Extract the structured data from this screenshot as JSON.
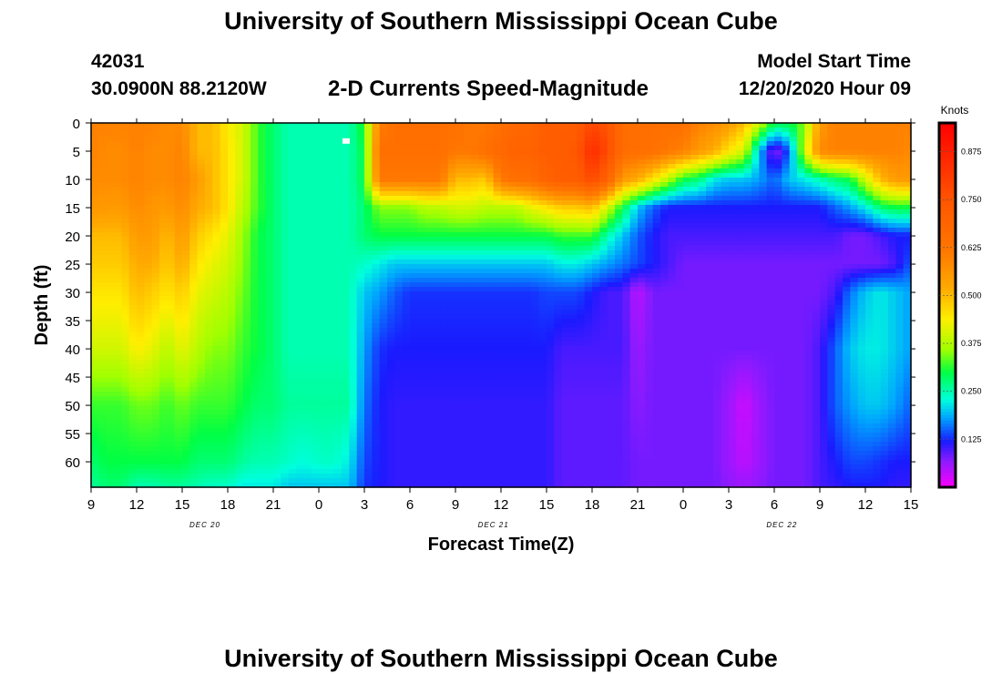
{
  "header": {
    "title": "University of Southern Mississippi Ocean Cube",
    "station": "42031",
    "coords": "30.0900N 88.2120W",
    "subtitle": "2-D Currents Speed-Magnitude",
    "model_start_label": "Model Start Time",
    "model_start_value": "12/20/2020 Hour 09"
  },
  "footer": {
    "title": "University of Southern Mississippi Ocean Cube"
  },
  "chart_data": {
    "type": "heatmap",
    "title": "2-D Currents Speed-Magnitude",
    "xlabel": "Forecast Time(Z)",
    "ylabel": "Depth (ft)",
    "x_tick_labels": [
      "9",
      "12",
      "15",
      "18",
      "21",
      "0",
      "3",
      "6",
      "9",
      "12",
      "15",
      "18",
      "21",
      "0",
      "3",
      "6",
      "9",
      "12",
      "15"
    ],
    "x_tick_hours": [
      0,
      3,
      6,
      9,
      12,
      15,
      18,
      21,
      24,
      27,
      30,
      33,
      36,
      39,
      42,
      45,
      48,
      51,
      54
    ],
    "date_labels": [
      {
        "text": "DEC 20",
        "hour": 7.5
      },
      {
        "text": "DEC 21",
        "hour": 26.5
      },
      {
        "text": "DEC 22",
        "hour": 45.5
      }
    ],
    "y_ticks": [
      0,
      5,
      10,
      15,
      20,
      25,
      30,
      35,
      40,
      45,
      50,
      55,
      60
    ],
    "ylim": [
      0,
      64.5
    ],
    "xlim": [
      0,
      54
    ],
    "colorbar": {
      "label": "Knots",
      "range": [
        0,
        0.95
      ],
      "tick_values": [
        0.125,
        0.25,
        0.375,
        0.5,
        0.625,
        0.75,
        0.875
      ],
      "tick_labels": [
        "0.125",
        "0.250",
        "0.375",
        "0.500",
        "0.625",
        "0.750",
        "0.875"
      ],
      "stops": [
        {
          "v": 0.0,
          "color": "#ff00ff"
        },
        {
          "v": 0.07,
          "color": "#8c1aff"
        },
        {
          "v": 0.12,
          "color": "#1a1aff"
        },
        {
          "v": 0.18,
          "color": "#00a0ff"
        },
        {
          "v": 0.23,
          "color": "#00ffdd"
        },
        {
          "v": 0.3,
          "color": "#00ff44"
        },
        {
          "v": 0.36,
          "color": "#a0ff00"
        },
        {
          "v": 0.44,
          "color": "#ffee00"
        },
        {
          "v": 0.52,
          "color": "#ffaa00"
        },
        {
          "v": 0.62,
          "color": "#ff7700"
        },
        {
          "v": 0.75,
          "color": "#ff5500"
        },
        {
          "v": 0.95,
          "color": "#ff0000"
        }
      ]
    },
    "depths": [
      0,
      5,
      10,
      15,
      20,
      25,
      30,
      40,
      50,
      60,
      64.5
    ],
    "hours": [
      0,
      1,
      2,
      3,
      4,
      5,
      6,
      7,
      8,
      9,
      10,
      11,
      12,
      13,
      14,
      15,
      16,
      17,
      18,
      19,
      20,
      21,
      22,
      23,
      24,
      25,
      26,
      27,
      28,
      29,
      30,
      31,
      32,
      33,
      34,
      35,
      36,
      37,
      38,
      39,
      40,
      41,
      42,
      43,
      44,
      45,
      46,
      47,
      48,
      49,
      50,
      51,
      52,
      53,
      54
    ],
    "speed_knots": [
      [
        0.6,
        0.6,
        0.6,
        0.6,
        0.6,
        0.58,
        0.58,
        0.5,
        0.5,
        0.44,
        0.4,
        0.32,
        0.28,
        0.25,
        0.25,
        0.25,
        0.25,
        0.25,
        0.32,
        0.6,
        0.65,
        0.65,
        0.65,
        0.65,
        0.65,
        0.62,
        0.62,
        0.65,
        0.68,
        0.68,
        0.72,
        0.72,
        0.72,
        0.78,
        0.75,
        0.66,
        0.65,
        0.65,
        0.65,
        0.65,
        0.6,
        0.58,
        0.55,
        0.5,
        0.4,
        0.3,
        0.3,
        0.35,
        0.55,
        0.6,
        0.6,
        0.6,
        0.6,
        0.6,
        0.6
      ],
      [
        0.6,
        0.58,
        0.58,
        0.6,
        0.58,
        0.58,
        0.6,
        0.5,
        0.5,
        0.45,
        0.4,
        0.32,
        0.28,
        0.25,
        0.25,
        0.25,
        0.25,
        0.25,
        0.3,
        0.65,
        0.65,
        0.65,
        0.65,
        0.65,
        0.62,
        0.62,
        0.65,
        0.68,
        0.7,
        0.7,
        0.72,
        0.72,
        0.74,
        0.85,
        0.78,
        0.66,
        0.65,
        0.65,
        0.62,
        0.6,
        0.55,
        0.52,
        0.45,
        0.4,
        0.2,
        0.06,
        0.15,
        0.4,
        0.58,
        0.6,
        0.6,
        0.6,
        0.6,
        0.6,
        0.58
      ],
      [
        0.58,
        0.58,
        0.58,
        0.6,
        0.58,
        0.58,
        0.6,
        0.55,
        0.5,
        0.45,
        0.4,
        0.32,
        0.28,
        0.25,
        0.25,
        0.25,
        0.25,
        0.25,
        0.3,
        0.62,
        0.62,
        0.62,
        0.62,
        0.62,
        0.5,
        0.5,
        0.48,
        0.62,
        0.65,
        0.65,
        0.7,
        0.72,
        0.72,
        0.78,
        0.7,
        0.55,
        0.52,
        0.45,
        0.38,
        0.3,
        0.28,
        0.22,
        0.2,
        0.2,
        0.18,
        0.15,
        0.2,
        0.22,
        0.25,
        0.28,
        0.3,
        0.4,
        0.5,
        0.55,
        0.55
      ],
      [
        0.56,
        0.55,
        0.55,
        0.58,
        0.56,
        0.55,
        0.58,
        0.52,
        0.5,
        0.45,
        0.38,
        0.32,
        0.28,
        0.25,
        0.25,
        0.25,
        0.25,
        0.25,
        0.28,
        0.35,
        0.35,
        0.35,
        0.38,
        0.38,
        0.4,
        0.4,
        0.38,
        0.38,
        0.38,
        0.42,
        0.45,
        0.48,
        0.48,
        0.5,
        0.4,
        0.3,
        0.2,
        0.15,
        0.12,
        0.12,
        0.12,
        0.12,
        0.12,
        0.12,
        0.12,
        0.12,
        0.12,
        0.12,
        0.12,
        0.15,
        0.18,
        0.22,
        0.28,
        0.3,
        0.3
      ],
      [
        0.5,
        0.5,
        0.5,
        0.55,
        0.55,
        0.5,
        0.55,
        0.48,
        0.45,
        0.42,
        0.36,
        0.3,
        0.28,
        0.25,
        0.25,
        0.25,
        0.25,
        0.25,
        0.28,
        0.3,
        0.3,
        0.3,
        0.3,
        0.3,
        0.3,
        0.3,
        0.3,
        0.3,
        0.3,
        0.3,
        0.3,
        0.32,
        0.32,
        0.32,
        0.25,
        0.2,
        0.15,
        0.12,
        0.1,
        0.1,
        0.1,
        0.1,
        0.1,
        0.1,
        0.1,
        0.1,
        0.1,
        0.1,
        0.1,
        0.1,
        0.08,
        0.08,
        0.1,
        0.12,
        0.12
      ],
      [
        0.48,
        0.48,
        0.48,
        0.52,
        0.52,
        0.48,
        0.52,
        0.45,
        0.42,
        0.4,
        0.35,
        0.3,
        0.28,
        0.25,
        0.25,
        0.25,
        0.25,
        0.25,
        0.24,
        0.22,
        0.2,
        0.2,
        0.2,
        0.2,
        0.2,
        0.2,
        0.2,
        0.2,
        0.2,
        0.2,
        0.2,
        0.22,
        0.22,
        0.2,
        0.18,
        0.16,
        0.14,
        0.12,
        0.1,
        0.08,
        0.08,
        0.08,
        0.08,
        0.08,
        0.08,
        0.08,
        0.08,
        0.08,
        0.08,
        0.08,
        0.08,
        0.08,
        0.08,
        0.1,
        0.15
      ],
      [
        0.45,
        0.45,
        0.45,
        0.5,
        0.48,
        0.45,
        0.48,
        0.42,
        0.4,
        0.38,
        0.34,
        0.3,
        0.28,
        0.25,
        0.25,
        0.25,
        0.25,
        0.25,
        0.2,
        0.18,
        0.15,
        0.13,
        0.13,
        0.13,
        0.13,
        0.13,
        0.13,
        0.13,
        0.13,
        0.13,
        0.14,
        0.14,
        0.14,
        0.12,
        0.1,
        0.1,
        0.04,
        0.08,
        0.08,
        0.08,
        0.08,
        0.08,
        0.08,
        0.08,
        0.08,
        0.08,
        0.08,
        0.08,
        0.08,
        0.1,
        0.16,
        0.2,
        0.22,
        0.2,
        0.18
      ],
      [
        0.4,
        0.4,
        0.4,
        0.44,
        0.42,
        0.38,
        0.42,
        0.38,
        0.35,
        0.35,
        0.32,
        0.3,
        0.28,
        0.25,
        0.25,
        0.25,
        0.25,
        0.25,
        0.18,
        0.13,
        0.12,
        0.12,
        0.12,
        0.12,
        0.12,
        0.12,
        0.12,
        0.12,
        0.12,
        0.12,
        0.12,
        0.1,
        0.1,
        0.1,
        0.1,
        0.1,
        0.06,
        0.08,
        0.08,
        0.08,
        0.08,
        0.08,
        0.08,
        0.08,
        0.08,
        0.08,
        0.08,
        0.08,
        0.1,
        0.15,
        0.2,
        0.22,
        0.22,
        0.2,
        0.18
      ],
      [
        0.32,
        0.32,
        0.32,
        0.34,
        0.34,
        0.32,
        0.34,
        0.32,
        0.32,
        0.32,
        0.3,
        0.28,
        0.28,
        0.26,
        0.26,
        0.26,
        0.26,
        0.26,
        0.16,
        0.12,
        0.11,
        0.11,
        0.11,
        0.11,
        0.11,
        0.11,
        0.11,
        0.11,
        0.11,
        0.11,
        0.11,
        0.09,
        0.09,
        0.09,
        0.09,
        0.09,
        0.07,
        0.08,
        0.08,
        0.08,
        0.08,
        0.08,
        0.06,
        0.03,
        0.06,
        0.08,
        0.08,
        0.08,
        0.1,
        0.15,
        0.18,
        0.2,
        0.2,
        0.18,
        0.15
      ],
      [
        0.28,
        0.3,
        0.3,
        0.3,
        0.3,
        0.3,
        0.3,
        0.28,
        0.28,
        0.28,
        0.26,
        0.25,
        0.25,
        0.24,
        0.23,
        0.24,
        0.24,
        0.22,
        0.14,
        0.12,
        0.11,
        0.11,
        0.11,
        0.11,
        0.11,
        0.11,
        0.11,
        0.11,
        0.11,
        0.11,
        0.11,
        0.09,
        0.09,
        0.09,
        0.09,
        0.09,
        0.08,
        0.08,
        0.08,
        0.08,
        0.08,
        0.08,
        0.06,
        0.04,
        0.06,
        0.08,
        0.08,
        0.08,
        0.1,
        0.12,
        0.14,
        0.14,
        0.13,
        0.12,
        0.12
      ],
      [
        0.26,
        0.28,
        0.28,
        0.25,
        0.25,
        0.26,
        0.26,
        0.25,
        0.24,
        0.24,
        0.22,
        0.22,
        0.22,
        0.2,
        0.2,
        0.2,
        0.2,
        0.2,
        0.13,
        0.12,
        0.11,
        0.11,
        0.11,
        0.11,
        0.11,
        0.11,
        0.11,
        0.11,
        0.11,
        0.11,
        0.11,
        0.09,
        0.09,
        0.09,
        0.09,
        0.09,
        0.08,
        0.08,
        0.08,
        0.08,
        0.08,
        0.08,
        0.07,
        0.06,
        0.07,
        0.08,
        0.08,
        0.08,
        0.1,
        0.11,
        0.12,
        0.12,
        0.12,
        0.11,
        0.11
      ]
    ],
    "markers": [
      {
        "hour": 16.8,
        "depth": 3.2,
        "color": "#ffffff"
      }
    ]
  }
}
